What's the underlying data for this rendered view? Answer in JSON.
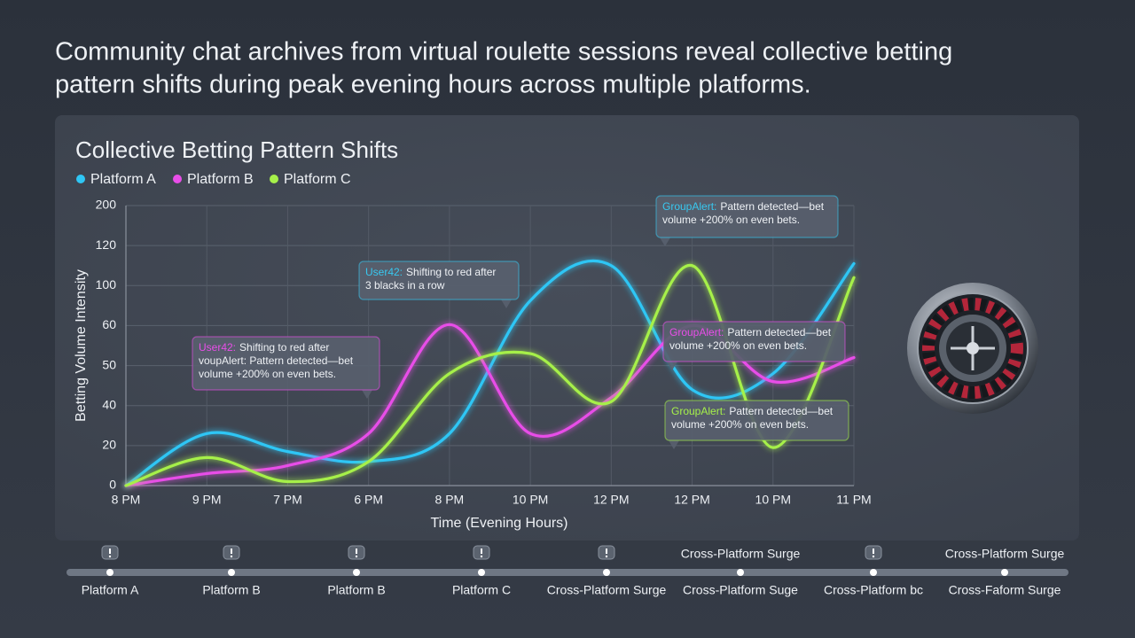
{
  "headline": [
    "Community chat archives from virtual roulette sessions reveal collective betting",
    "pattern shifts during peak evening hours across multiple platforms."
  ],
  "chart_data": {
    "type": "line",
    "title": "Collective Betting Pattern Shifts",
    "x_label": "Time (Evening Hours)",
    "y_label": "Betting Volume Intensity",
    "categories": [
      "8 PM",
      "9 PM",
      "7 PM",
      "6 PM",
      "8 PM",
      "10 PM",
      "12 PM",
      "12 PM",
      "10 PM",
      "11 PM"
    ],
    "yscale": "ordinal",
    "ylim": [
      0,
      200
    ],
    "yticks": [
      0,
      20,
      40,
      50,
      60,
      100,
      120,
      200
    ],
    "grid": true,
    "legend": "top-left",
    "series": [
      {
        "name": "Platform A",
        "color": "#2fc6f5",
        "values": [
          0,
          26,
          17,
          12,
          26,
          85,
          110,
          44,
          48,
          111
        ]
      },
      {
        "name": "Platform B",
        "color": "#e84ee8",
        "values": [
          0,
          6,
          10,
          26,
          61,
          26,
          42,
          60,
          46,
          52
        ]
      },
      {
        "name": "Platform C",
        "color": "#a6f04a",
        "values": [
          0,
          14,
          2,
          12,
          48,
          53,
          41,
          110,
          19,
          104
        ]
      }
    ],
    "annotations": [
      {
        "user": "User42:",
        "color": "#38c8f0",
        "lines": [
          "Shifting to red after",
          "3 blacks in a row"
        ]
      },
      {
        "user": "GroupAlert:",
        "color": "#38c8f0",
        "lines": [
          "Pattern detected—bet",
          "volume +200% on even bets."
        ]
      },
      {
        "user": "User42:",
        "color": "#e84ee8",
        "lines": [
          "Shifting to red after",
          "voupAlert: Pattern detected—bet",
          "volume +200% on even bets."
        ]
      },
      {
        "user": "GroupAlert:",
        "color": "#e84ee8",
        "lines": [
          "Pattern detected—bet",
          "volume +200% on even bets."
        ]
      },
      {
        "user": "GroupAlert:",
        "color": "#a6f04a",
        "lines": [
          "Pattern detected—bet",
          "volume +200% on even bets."
        ]
      }
    ]
  },
  "timeline": {
    "events": [
      {
        "label": "Platform A"
      },
      {
        "label": "Platform B"
      },
      {
        "label": "Platform B"
      },
      {
        "label": "Platform C"
      },
      {
        "label": "Cross-Platform Surge"
      },
      {
        "label": "Cross-Platform Suge",
        "note": "Cross-Platform Surge"
      },
      {
        "label": "Cross-Platform bc"
      },
      {
        "label": "Cross-Faform Surge",
        "note": "Cross-Platform Surge"
      }
    ]
  }
}
